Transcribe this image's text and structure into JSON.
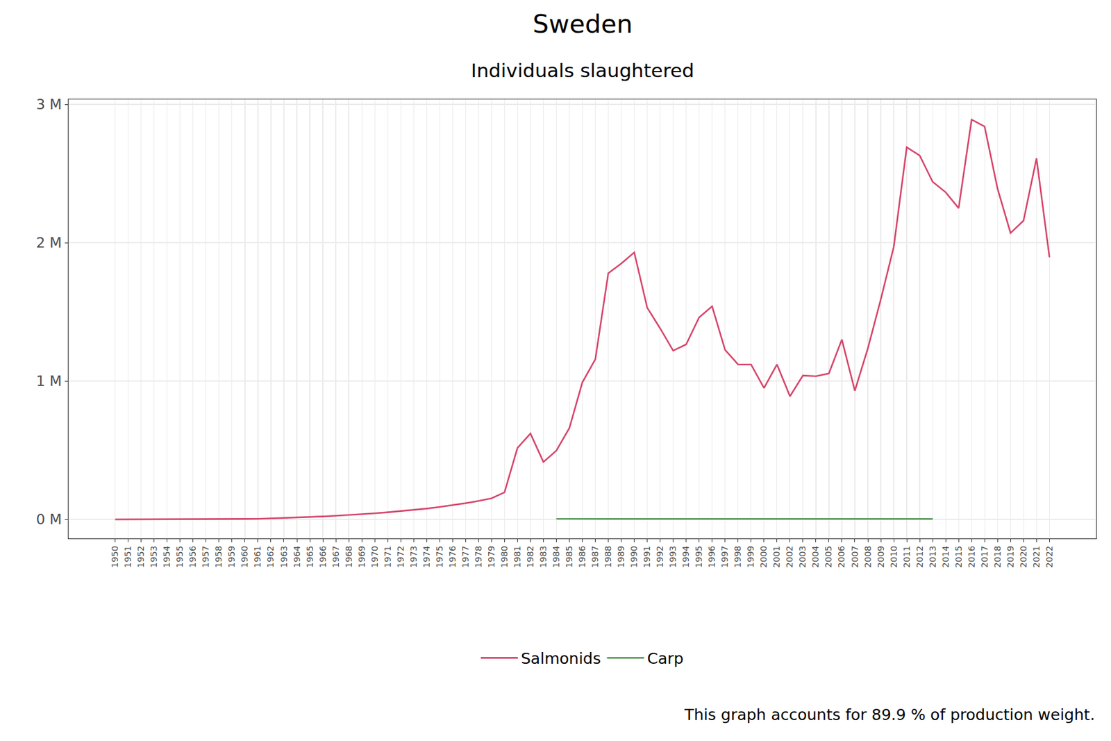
{
  "chart_data": {
    "type": "line",
    "title": "Sweden",
    "subtitle": "Individuals slaughtered",
    "caption": "This graph accounts for 89.9 % of production weight.",
    "x": [
      1950,
      1951,
      1952,
      1953,
      1954,
      1955,
      1956,
      1957,
      1958,
      1959,
      1960,
      1961,
      1962,
      1963,
      1964,
      1965,
      1966,
      1967,
      1968,
      1969,
      1970,
      1971,
      1972,
      1973,
      1974,
      1975,
      1976,
      1977,
      1978,
      1979,
      1980,
      1981,
      1982,
      1983,
      1984,
      1985,
      1986,
      1987,
      1988,
      1989,
      1990,
      1991,
      1992,
      1993,
      1994,
      1995,
      1996,
      1997,
      1998,
      1999,
      2000,
      2001,
      2002,
      2003,
      2004,
      2005,
      2006,
      2007,
      2008,
      2009,
      2010,
      2011,
      2012,
      2013,
      2014,
      2015,
      2016,
      2017,
      2018,
      2019,
      2020,
      2021,
      2022
    ],
    "series": [
      {
        "name": "Salmonids",
        "color": "#d6456b",
        "values": [
          0,
          0,
          0,
          0,
          0,
          0,
          0,
          0,
          1000,
          2000,
          3000,
          4000,
          7000,
          10000,
          13000,
          17000,
          21000,
          26000,
          31000,
          37000,
          44000,
          51000,
          59000,
          68000,
          78000,
          90000,
          102000,
          117000,
          133000,
          152000,
          195000,
          517000,
          620000,
          415000,
          497000,
          660000,
          990000,
          1157000,
          1780000,
          1850000,
          1930000,
          1530000,
          1380000,
          1220000,
          1265000,
          1460000,
          1540000,
          1225000,
          1120000,
          1120000,
          950000,
          1120000,
          890000,
          1040000,
          1035000,
          1055000,
          1300000,
          930000,
          1235000,
          1590000,
          1970000,
          2690000,
          2630000,
          2440000,
          2365000,
          2250000,
          2890000,
          2840000,
          2390000,
          2070000,
          2160000,
          2610000,
          1895000
        ]
      },
      {
        "name": "Carp",
        "color": "#5b9e5b",
        "values": [
          null,
          null,
          null,
          null,
          null,
          null,
          null,
          null,
          null,
          null,
          null,
          null,
          null,
          null,
          null,
          null,
          null,
          null,
          null,
          null,
          null,
          null,
          null,
          null,
          null,
          null,
          null,
          null,
          null,
          null,
          null,
          null,
          null,
          null,
          4000,
          3000,
          3000,
          3000,
          3000,
          3000,
          3000,
          3000,
          3000,
          3000,
          3000,
          3000,
          3000,
          3000,
          3000,
          3000,
          3000,
          3000,
          3000,
          3000,
          3000,
          3000,
          3000,
          3000,
          3000,
          3000,
          3000,
          3000,
          3000,
          3000,
          null,
          null,
          null,
          null,
          null,
          null,
          null,
          null,
          null
        ]
      }
    ],
    "xlim": [
      1946.4,
      2025.6
    ],
    "xticks": [
      1950,
      1951,
      1952,
      1953,
      1954,
      1955,
      1956,
      1957,
      1958,
      1959,
      1960,
      1961,
      1962,
      1963,
      1964,
      1965,
      1966,
      1967,
      1968,
      1969,
      1970,
      1971,
      1972,
      1973,
      1974,
      1975,
      1976,
      1977,
      1978,
      1979,
      1980,
      1981,
      1982,
      1983,
      1984,
      1985,
      1986,
      1987,
      1988,
      1989,
      1990,
      1991,
      1992,
      1993,
      1994,
      1995,
      1996,
      1997,
      1998,
      1999,
      2000,
      2001,
      2002,
      2003,
      2004,
      2005,
      2006,
      2007,
      2008,
      2009,
      2010,
      2011,
      2012,
      2013,
      2014,
      2015,
      2016,
      2017,
      2018,
      2019,
      2020,
      2021,
      2022
    ],
    "ylim": [
      -138000,
      3036000
    ],
    "yticks": [
      {
        "value": 0,
        "label": "0 M"
      },
      {
        "value": 1000000,
        "label": "1 M"
      },
      {
        "value": 2000000,
        "label": "2 M"
      },
      {
        "value": 3000000,
        "label": "3 M"
      }
    ],
    "grid": true,
    "legend": "bottom"
  }
}
